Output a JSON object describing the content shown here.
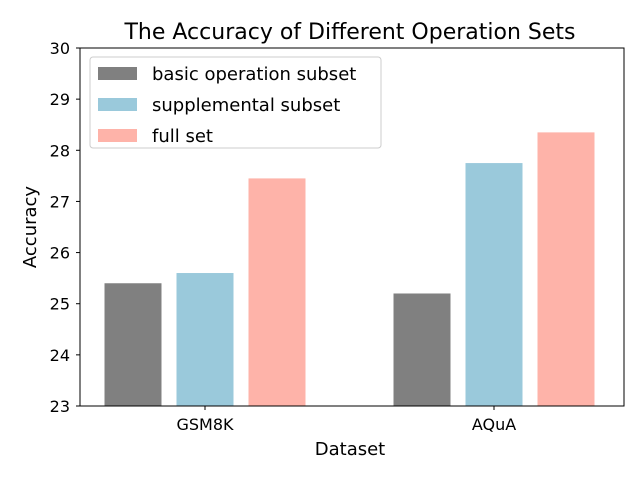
{
  "chart_data": {
    "type": "bar",
    "title": "The Accuracy of Different Operation Sets",
    "xlabel": "Dataset",
    "ylabel": "Accuracy",
    "categories": [
      "GSM8K",
      "AQuA"
    ],
    "ylim": [
      23,
      30
    ],
    "yticks": [
      "23",
      "24",
      "25",
      "26",
      "27",
      "28",
      "29",
      "30"
    ],
    "grid": false,
    "legend_position": "upper-left",
    "series": [
      {
        "name": "basic operation subset",
        "color": "#808080",
        "values": [
          25.4,
          25.2
        ]
      },
      {
        "name": "supplemental subset",
        "color": "#9ac9db",
        "values": [
          25.6,
          27.75
        ]
      },
      {
        "name": "full set",
        "color": "#feb3a9",
        "values": [
          27.45,
          28.35
        ]
      }
    ]
  }
}
